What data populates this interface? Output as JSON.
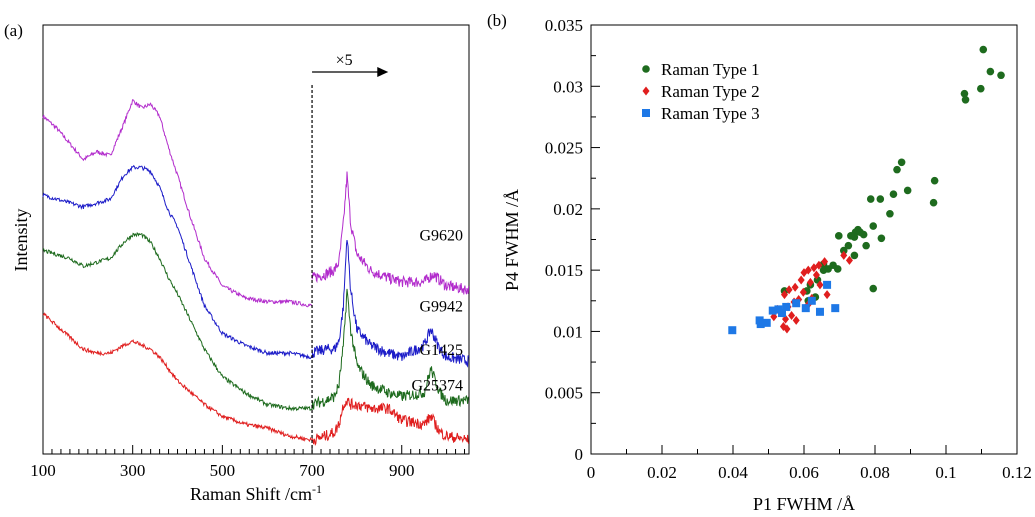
{
  "chart_data": [
    {
      "panel_label": "(a)",
      "type": "line",
      "xlabel": "Raman Shift /cm",
      "xlabel_superscript": "-1",
      "ylabel": "Intensity",
      "xlim": [
        100,
        1050
      ],
      "x_ticks": [
        100,
        300,
        500,
        700,
        900
      ],
      "y_ticks": [],
      "grid": false,
      "annotation": {
        "text": "×5",
        "from_x": 700,
        "to_x": 870,
        "divider_x": 700
      },
      "series": [
        {
          "name": "G9620",
          "color": "#b22ccc",
          "x": [
            100,
            130,
            160,
            190,
            220,
            250,
            280,
            300,
            320,
            340,
            360,
            380,
            400,
            430,
            460,
            500,
            550,
            600,
            650,
            700
          ],
          "y": [
            0.82,
            0.79,
            0.75,
            0.71,
            0.73,
            0.72,
            0.8,
            0.86,
            0.84,
            0.85,
            0.82,
            0.74,
            0.67,
            0.56,
            0.46,
            0.39,
            0.36,
            0.35,
            0.35,
            0.34
          ],
          "x2": [
            700,
            730,
            750,
            760,
            770,
            778,
            786,
            800,
            830,
            870,
            900,
            950,
            970,
            1000,
            1050
          ],
          "y2": [
            0.41,
            0.42,
            0.43,
            0.45,
            0.55,
            0.67,
            0.55,
            0.47,
            0.43,
            0.41,
            0.4,
            0.4,
            0.42,
            0.39,
            0.38
          ]
        },
        {
          "name": "G9942",
          "color": "#1c1cc8",
          "x": [
            100,
            130,
            160,
            190,
            220,
            250,
            280,
            300,
            320,
            340,
            360,
            380,
            400,
            430,
            460,
            500,
            550,
            600,
            650,
            700
          ],
          "y": [
            0.62,
            0.61,
            0.6,
            0.59,
            0.6,
            0.61,
            0.67,
            0.69,
            0.69,
            0.68,
            0.64,
            0.58,
            0.54,
            0.44,
            0.34,
            0.27,
            0.24,
            0.22,
            0.22,
            0.21
          ],
          "x2": [
            700,
            730,
            750,
            760,
            770,
            778,
            786,
            800,
            830,
            870,
            900,
            950,
            965,
            985,
            1000,
            1050
          ],
          "y2": [
            0.22,
            0.23,
            0.23,
            0.25,
            0.34,
            0.52,
            0.38,
            0.28,
            0.24,
            0.22,
            0.21,
            0.24,
            0.28,
            0.23,
            0.21,
            0.2
          ]
        },
        {
          "name": "G1425",
          "color": "#1e6b1e",
          "x": [
            100,
            130,
            160,
            190,
            220,
            250,
            280,
            300,
            320,
            340,
            360,
            380,
            400,
            430,
            460,
            500,
            550,
            600,
            650,
            700
          ],
          "y": [
            0.48,
            0.47,
            0.46,
            0.44,
            0.45,
            0.46,
            0.5,
            0.52,
            0.52,
            0.5,
            0.46,
            0.41,
            0.37,
            0.3,
            0.23,
            0.16,
            0.12,
            0.09,
            0.08,
            0.08
          ],
          "x2": [
            700,
            730,
            750,
            760,
            770,
            778,
            786,
            800,
            830,
            870,
            900,
            950,
            965,
            985,
            1000,
            1050
          ],
          "y2": [
            0.09,
            0.1,
            0.11,
            0.14,
            0.24,
            0.38,
            0.28,
            0.19,
            0.14,
            0.12,
            0.11,
            0.12,
            0.18,
            0.12,
            0.1,
            0.1
          ]
        },
        {
          "name": "G25374",
          "color": "#e01e1e",
          "x": [
            100,
            130,
            160,
            190,
            220,
            250,
            280,
            300,
            320,
            340,
            360,
            380,
            400,
            430,
            460,
            500,
            550,
            600,
            650,
            700
          ],
          "y": [
            0.32,
            0.29,
            0.26,
            0.23,
            0.22,
            0.22,
            0.24,
            0.25,
            0.24,
            0.23,
            0.21,
            0.18,
            0.15,
            0.12,
            0.09,
            0.06,
            0.04,
            0.03,
            0.01,
            0.0
          ],
          "x2": [
            700,
            730,
            750,
            760,
            770,
            778,
            786,
            800,
            830,
            870,
            900,
            950,
            965,
            985,
            1000,
            1050
          ],
          "y2": [
            0.0,
            0.01,
            0.02,
            0.04,
            0.09,
            0.1,
            0.09,
            0.09,
            0.08,
            0.08,
            0.05,
            0.04,
            0.06,
            0.02,
            0.01,
            0.0
          ]
        }
      ]
    },
    {
      "panel_label": "(b)",
      "type": "scatter",
      "xlabel": "P1 FWHM /Å",
      "ylabel": "P4 FWHM /Å",
      "xlim": [
        0,
        0.12
      ],
      "ylim": [
        0,
        0.035
      ],
      "x_ticks": [
        0,
        0.02,
        0.04,
        0.06,
        0.08,
        0.1,
        0.12
      ],
      "x_tick_labels": [
        "0",
        "0.02",
        "0.04",
        "0.06",
        "0.08",
        "0.1",
        "0.12"
      ],
      "y_ticks": [
        0,
        0.005,
        0.01,
        0.015,
        0.02,
        0.025,
        0.03,
        0.035
      ],
      "y_tick_labels": [
        "0",
        "0.005",
        "0.01",
        "0.015",
        "0.02",
        "0.025",
        "0.03",
        "0.035"
      ],
      "grid": false,
      "legend_position": "top-left",
      "series": [
        {
          "name": "Raman Type 1",
          "color": "#1e6b1e",
          "marker": "circle",
          "points": [
            [
              0.1105,
              0.033
            ],
            [
              0.1155,
              0.0309
            ],
            [
              0.1125,
              0.0312
            ],
            [
              0.1052,
              0.0294
            ],
            [
              0.1055,
              0.0289
            ],
            [
              0.1098,
              0.0298
            ],
            [
              0.0875,
              0.0238
            ],
            [
              0.0862,
              0.0232
            ],
            [
              0.0968,
              0.0223
            ],
            [
              0.0892,
              0.0215
            ],
            [
              0.0852,
              0.0212
            ],
            [
              0.0788,
              0.0208
            ],
            [
              0.0815,
              0.0208
            ],
            [
              0.0965,
              0.0205
            ],
            [
              0.0842,
              0.0196
            ],
            [
              0.0795,
              0.0186
            ],
            [
              0.0752,
              0.0183
            ],
            [
              0.0745,
              0.0181
            ],
            [
              0.0758,
              0.0181
            ],
            [
              0.0768,
              0.0179
            ],
            [
              0.0742,
              0.0177
            ],
            [
              0.0732,
              0.0178
            ],
            [
              0.0698,
              0.0178
            ],
            [
              0.0818,
              0.0176
            ],
            [
              0.0725,
              0.017
            ],
            [
              0.0775,
              0.017
            ],
            [
              0.0712,
              0.0166
            ],
            [
              0.0742,
              0.0162
            ],
            [
              0.0682,
              0.0154
            ],
            [
              0.0695,
              0.0151
            ],
            [
              0.0668,
              0.0151
            ],
            [
              0.0655,
              0.015
            ],
            [
              0.0638,
              0.0142
            ],
            [
              0.0618,
              0.0138
            ],
            [
              0.0608,
              0.0133
            ],
            [
              0.0545,
              0.0133
            ],
            [
              0.0632,
              0.0128
            ],
            [
              0.0612,
              0.0125
            ],
            [
              0.0795,
              0.0135
            ],
            [
              0.0655,
              0.0155
            ]
          ]
        },
        {
          "name": "Raman Type 2",
          "color": "#e01e1e",
          "marker": "diamond",
          "points": [
            [
              0.0712,
              0.0162
            ],
            [
              0.0728,
              0.0158
            ],
            [
              0.0658,
              0.0157
            ],
            [
              0.0642,
              0.0154
            ],
            [
              0.0628,
              0.0152
            ],
            [
              0.0612,
              0.015
            ],
            [
              0.06,
              0.0148
            ],
            [
              0.0635,
              0.0146
            ],
            [
              0.0592,
              0.0142
            ],
            [
              0.0618,
              0.014
            ],
            [
              0.0645,
              0.0138
            ],
            [
              0.0575,
              0.0136
            ],
            [
              0.0558,
              0.0134
            ],
            [
              0.0598,
              0.0132
            ],
            [
              0.0665,
              0.013
            ],
            [
              0.0545,
              0.013
            ],
            [
              0.0622,
              0.0127
            ],
            [
              0.0585,
              0.0126
            ],
            [
              0.0572,
              0.0124
            ],
            [
              0.0612,
              0.0122
            ],
            [
              0.0555,
              0.012
            ],
            [
              0.0525,
              0.0118
            ],
            [
              0.054,
              0.0115
            ],
            [
              0.0565,
              0.0113
            ],
            [
              0.0515,
              0.0112
            ],
            [
              0.0548,
              0.011
            ],
            [
              0.0578,
              0.0109
            ],
            [
              0.0542,
              0.0104
            ],
            [
              0.0552,
              0.0102
            ]
          ]
        },
        {
          "name": "Raman Type 3",
          "color": "#1e78e6",
          "marker": "square",
          "points": [
            [
              0.0398,
              0.0101
            ],
            [
              0.0475,
              0.0109
            ],
            [
              0.0478,
              0.0106
            ],
            [
              0.0495,
              0.0107
            ],
            [
              0.0512,
              0.0117
            ],
            [
              0.0528,
              0.0118
            ],
            [
              0.055,
              0.012
            ],
            [
              0.0578,
              0.0123
            ],
            [
              0.0605,
              0.0119
            ],
            [
              0.0645,
              0.0116
            ],
            [
              0.0688,
              0.0119
            ],
            [
              0.0665,
              0.0138
            ],
            [
              0.0622,
              0.0125
            ],
            [
              0.0538,
              0.0115
            ]
          ]
        }
      ]
    }
  ]
}
